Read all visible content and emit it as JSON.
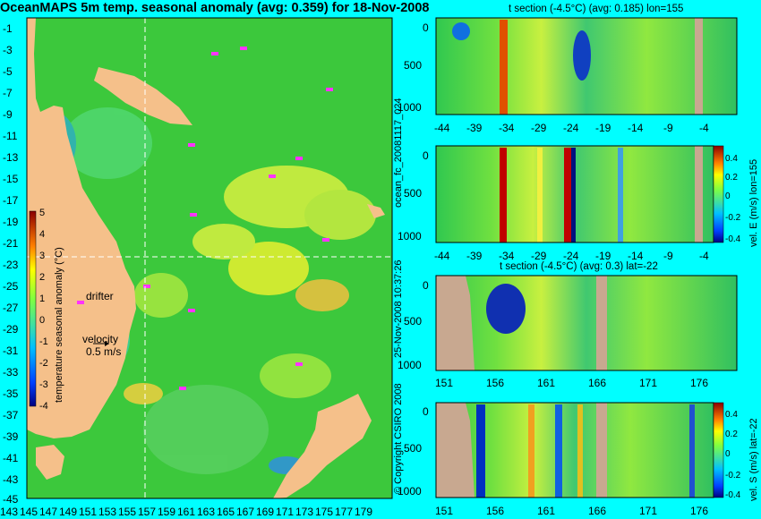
{
  "title": "OceanMAPS 5m temp. seasonal anomaly (avg: 0.359) for 18-Nov-2008",
  "side_labels": {
    "run": "ocean_fc_20081117_024",
    "timestamp": "25-Nov-2008 10:37:26",
    "copyright": "© Copyright CSIRO 2008"
  },
  "map": {
    "lat_ticks": [
      "-1",
      "-3",
      "-5",
      "-7",
      "-9",
      "-11",
      "-13",
      "-15",
      "-17",
      "-19",
      "-21",
      "-23",
      "-25",
      "-27",
      "-29",
      "-31",
      "-33",
      "-35",
      "-37",
      "-39",
      "-41",
      "-43",
      "-45"
    ],
    "lon_ticks": [
      "143",
      "145",
      "147",
      "149",
      "151",
      "153",
      "155",
      "157",
      "159",
      "161",
      "163",
      "165",
      "167",
      "169",
      "171",
      "173",
      "175",
      "177",
      "179"
    ],
    "colorbar": {
      "label": "temperature seasonal anomaly (°C)",
      "ticks": [
        "5",
        "4",
        "3",
        "2",
        "1",
        "0",
        "-1",
        "-2",
        "-3",
        "-4"
      ]
    },
    "drifter_label": "drifter",
    "velocity_label": "velocity",
    "velocity_value": "0.5 m/s",
    "colors": {
      "land": "#f5c08a",
      "green": "#3cc83c",
      "contour": "#66e8e8",
      "drifter": "#ff33ff"
    }
  },
  "panels": [
    {
      "title": "t section (-4.5°C) (avg: 0.185) lon=155",
      "y_ticks": [
        "0",
        "500",
        "1000"
      ],
      "x_ticks": [
        "-44",
        "-39",
        "-34",
        "-29",
        "-24",
        "-19",
        "-14",
        "-9",
        "-4"
      ]
    },
    {
      "title": "",
      "y_ticks": [
        "0",
        "500",
        "1000"
      ],
      "x_ticks": [
        "-44",
        "-39",
        "-34",
        "-29",
        "-24",
        "-19",
        "-14",
        "-9",
        "-4"
      ],
      "colorbar_label": "vel. E (m/s) lon=155",
      "colorbar_ticks": [
        "0.4",
        "0.2",
        "0",
        "-0.2",
        "-0.4"
      ]
    },
    {
      "title": "t section (-4.5°C) (avg: 0.3) lat=-22",
      "y_ticks": [
        "0",
        "500",
        "1000"
      ],
      "x_ticks": [
        "151",
        "156",
        "161",
        "166",
        "171",
        "176"
      ]
    },
    {
      "title": "",
      "y_ticks": [
        "0",
        "500",
        "1000"
      ],
      "x_ticks": [
        "151",
        "156",
        "161",
        "166",
        "171",
        "176"
      ],
      "colorbar_label": "vel. S (m/s) lat=-22",
      "colorbar_ticks": [
        "0.4",
        "0.2",
        "0",
        "-0.2",
        "-0.4"
      ]
    }
  ],
  "chart_data": [
    {
      "type": "heatmap",
      "title": "OceanMAPS 5m temp. seasonal anomaly (avg: 0.359) for 18-Nov-2008",
      "xlabel": "",
      "ylabel": "",
      "xlim": [
        143,
        180
      ],
      "ylim": [
        -45,
        0
      ],
      "colorbar_label": "temperature seasonal anomaly (°C)",
      "clim": [
        -4,
        5
      ]
    },
    {
      "type": "heatmap",
      "title": "t section (-4.5°C) (avg: 0.185) lon=155",
      "xlim": [
        -46,
        1
      ],
      "ylim": [
        1050,
        0
      ]
    },
    {
      "type": "heatmap",
      "title": "",
      "xlim": [
        -46,
        1
      ],
      "ylim": [
        1050,
        0
      ],
      "colorbar_label": "vel. E (m/s) lon=155",
      "clim": [
        -0.4,
        0.4
      ]
    },
    {
      "type": "heatmap",
      "title": "t section (-4.5°C) (avg: 0.3) lat=-22",
      "xlim": [
        150,
        180
      ],
      "ylim": [
        1050,
        0
      ]
    },
    {
      "type": "heatmap",
      "title": "",
      "xlim": [
        150,
        180
      ],
      "ylim": [
        1050,
        0
      ],
      "colorbar_label": "vel. S (m/s) lat=-22",
      "clim": [
        -0.4,
        0.4
      ]
    }
  ]
}
